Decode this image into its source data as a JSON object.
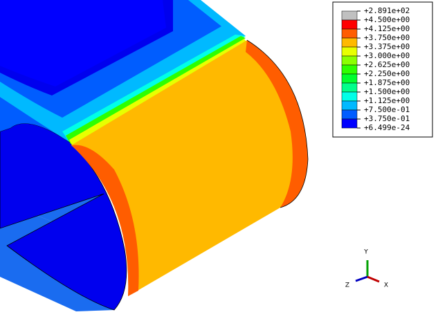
{
  "legend": {
    "entries": [
      "+2.891e+02",
      "+4.500e+00",
      "+4.125e+00",
      "+3.750e+00",
      "+3.375e+00",
      "+3.000e+00",
      "+2.625e+00",
      "+2.250e+00",
      "+1.875e+00",
      "+1.500e+00",
      "+1.125e+00",
      "+7.500e-01",
      "+3.750e-01",
      "+6.499e-24"
    ],
    "colors": [
      "#c0c0c0",
      "#ff0000",
      "#ff5d00",
      "#ffb900",
      "#e8ff00",
      "#8bff00",
      "#2eff00",
      "#00ff2e",
      "#00ff8b",
      "#00ffe8",
      "#00b9ff",
      "#005dff",
      "#0000ff"
    ]
  },
  "triad": {
    "y": "Y",
    "z": "Z",
    "x": "X"
  }
}
